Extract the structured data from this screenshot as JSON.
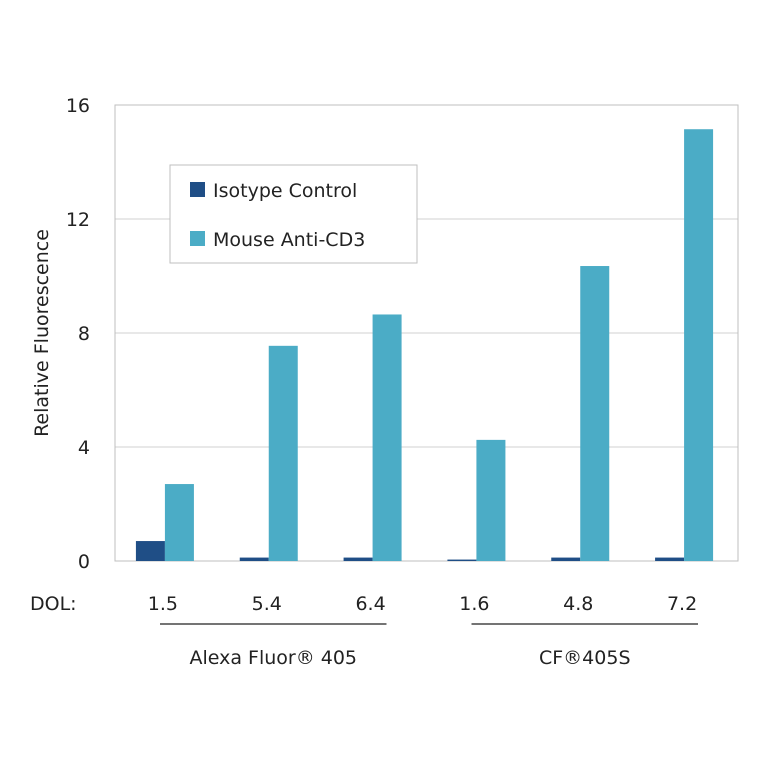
{
  "chart_data": {
    "type": "bar",
    "ylabel": "Relative Fluorescence",
    "ylim": [
      0,
      16
    ],
    "yticks": [
      0,
      4,
      8,
      12,
      16
    ],
    "grid": true,
    "x_prefix": "DOL:",
    "categories": [
      "1.5",
      "5.4",
      "6.4",
      "1.6",
      "4.8",
      "7.2"
    ],
    "groups": [
      {
        "label": "Alexa Fluor® 405",
        "categories": [
          0,
          1,
          2
        ]
      },
      {
        "label": "CF®405S",
        "categories": [
          3,
          4,
          5
        ]
      }
    ],
    "series": [
      {
        "name": "Isotype Control",
        "color": "#1f4e86",
        "values": [
          0.7,
          0.12,
          0.12,
          0.05,
          0.12,
          0.12
        ]
      },
      {
        "name": "Mouse Anti-CD3",
        "color": "#4bacc6",
        "values": [
          2.7,
          7.55,
          8.65,
          4.25,
          10.35,
          15.15
        ]
      }
    ],
    "legend": "top-left"
  }
}
